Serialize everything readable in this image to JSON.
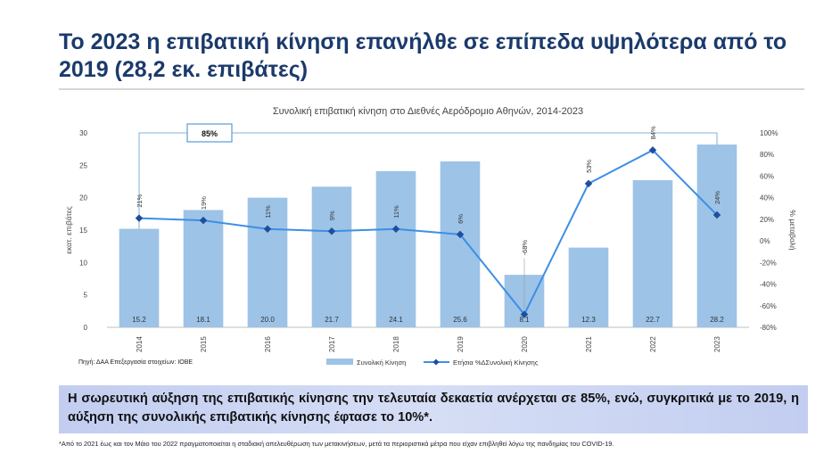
{
  "slide": {
    "title": "Το 2023 η επιβατική κίνηση επανήλθε σε επίπεδα υψηλότερα από το 2019 (28,2 εκ. επιβάτες)",
    "source_label": "Πηγή: ΔΑΑ Επεξεργασία στοιχείων: ΙΟΒΕ",
    "summary": "Η σωρευτική αύξηση της επιβατικής κίνησης την τελευταία δεκαετία ανέρχεται σε 85%, ενώ, συγκριτικά με το 2019, η αύξηση της συνολικής επιβατικής κίνησης έφτασε το 10%*.",
    "footnote": "*Από το 2021 έως και τον Μάιο του 2022 πραγματοποιείται η σταδιακή απελευθέρωση των μετακινήσεων, μετά τα περιοριστικά μέτρα που είχαν επιβληθεί λόγω της πανδημίας του COVID-19."
  },
  "chart_data": {
    "type": "bar",
    "title": "Συνολική επιβατική κίνηση στο Διεθνές Αερόδρομιο Αθηνών, 2014-2023",
    "categories": [
      "2014",
      "2015",
      "2016",
      "2017",
      "2018",
      "2019",
      "2020",
      "2021",
      "2022",
      "2023"
    ],
    "ylabel": "εκατ. επιβάτες",
    "y2label": "% μεταβολή",
    "ylim": [
      0,
      30
    ],
    "yticks": [
      0,
      5,
      10,
      15,
      20,
      25,
      30
    ],
    "y2lim": [
      -80,
      100
    ],
    "y2ticks": [
      -80,
      -60,
      -40,
      -20,
      0,
      20,
      40,
      60,
      80,
      100
    ],
    "series": [
      {
        "name": "Συνολική Κίνηση",
        "type": "bar",
        "color": "#9dc3e6",
        "values": [
          15.2,
          18.1,
          20.0,
          21.7,
          24.1,
          25.6,
          8.1,
          12.3,
          22.7,
          28.2
        ],
        "labels": [
          "15.2",
          "18.1",
          "20.0",
          "21.7",
          "24.1",
          "25.6",
          "8.1",
          "12.3",
          "22.7",
          "28.2"
        ]
      },
      {
        "name": "Ετήσια %ΔΣυνολική Κίνησης",
        "type": "line",
        "axis": "right",
        "color": "#3d8fe6",
        "values": [
          21,
          19,
          11,
          9,
          11,
          6,
          -68,
          53,
          84,
          24
        ],
        "labels": [
          "21%",
          "19%",
          "11%",
          "9%",
          "11%",
          "6%",
          "-68%",
          "53%",
          "84%",
          "24%"
        ]
      }
    ],
    "annotation": "85%",
    "legend_position": "bottom",
    "grid": false
  }
}
